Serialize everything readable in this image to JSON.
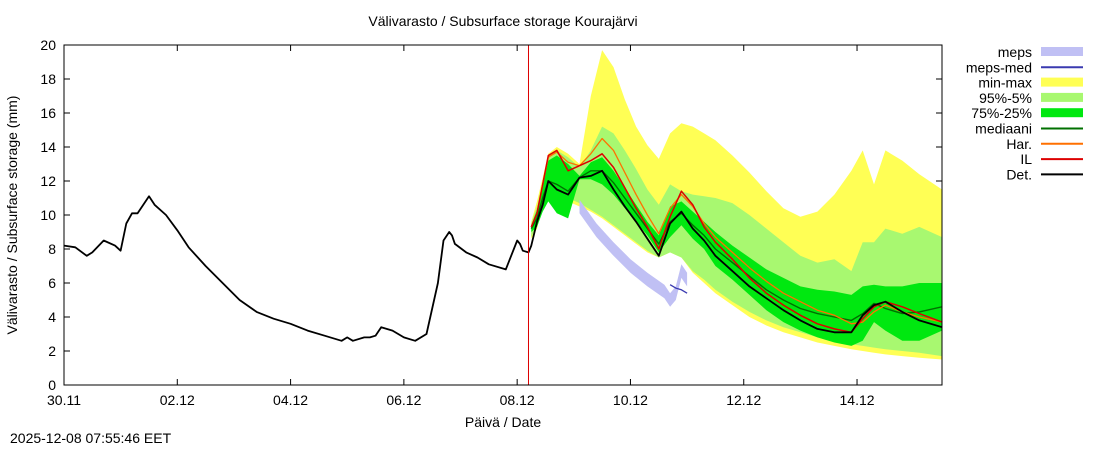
{
  "chart_data": {
    "type": "line",
    "title": "Välivarasto / Subsurface storage  Kourajärvi",
    "xlabel": "Päivä / Date",
    "ylabel": "Välivarasto / Subsurface storage (mm)",
    "xlim": [
      0,
      15.5
    ],
    "ylim": [
      0,
      20
    ],
    "x_ticks": [
      {
        "x": 0,
        "label": "30.11"
      },
      {
        "x": 2,
        "label": "02.12"
      },
      {
        "x": 4,
        "label": "04.12"
      },
      {
        "x": 6,
        "label": "06.12"
      },
      {
        "x": 8,
        "label": "08.12"
      },
      {
        "x": 10,
        "label": "10.12"
      },
      {
        "x": 12,
        "label": "12.12"
      },
      {
        "x": 14,
        "label": "14.12"
      }
    ],
    "y_ticks": [
      0,
      2,
      4,
      6,
      8,
      10,
      12,
      14,
      16,
      18,
      20
    ],
    "forecast_start": 8.2,
    "legend": [
      {
        "label": "meps",
        "color": "#c0c0f4",
        "style": "band"
      },
      {
        "label": "meps-med",
        "color": "#3a3ab0",
        "style": "line"
      },
      {
        "label": "min-max",
        "color": "#ffff55",
        "style": "band"
      },
      {
        "label": "95%-5%",
        "color": "#a8f870",
        "style": "band"
      },
      {
        "label": "75%-25%",
        "color": "#00e810",
        "style": "band"
      },
      {
        "label": "mediaani",
        "color": "#007000",
        "style": "line"
      },
      {
        "label": "Har.",
        "color": "#ff7000",
        "style": "line"
      },
      {
        "label": "IL",
        "color": "#dd0000",
        "style": "line"
      },
      {
        "label": "Det.",
        "color": "#000000",
        "style": "line"
      }
    ],
    "series": [
      {
        "name": "min-max",
        "x": [
          8.25,
          8.35,
          8.45,
          8.55,
          8.7,
          8.9,
          9.1,
          9.3,
          9.5,
          9.7,
          9.9,
          10.1,
          10.3,
          10.5,
          10.7,
          10.9,
          11.1,
          11.3,
          11.5,
          11.8,
          12.1,
          12.4,
          12.7,
          13,
          13.3,
          13.6,
          13.9,
          14.1,
          14.3,
          14.5,
          14.8,
          15.1,
          15.5
        ],
        "upper": [
          9.6,
          10.8,
          12.2,
          13.6,
          14.0,
          13.6,
          13.0,
          17.0,
          19.7,
          18.7,
          16.8,
          15.2,
          14.1,
          13.3,
          14.8,
          15.4,
          15.2,
          14.8,
          14.4,
          13.5,
          12.5,
          11.4,
          10.4,
          9.9,
          10.2,
          11.2,
          12.6,
          13.8,
          11.8,
          13.8,
          13.2,
          12.4,
          11.5
        ],
        "lower": [
          8.6,
          9.2,
          10.6,
          11.2,
          11.0,
          10.8,
          10.5,
          10.2,
          9.8,
          9.3,
          8.8,
          8.3,
          7.8,
          7.5,
          7.8,
          7.5,
          6.6,
          6.0,
          5.4,
          4.7,
          4.0,
          3.5,
          3.1,
          2.8,
          2.5,
          2.3,
          2.1,
          2.0,
          1.9,
          1.8,
          1.7,
          1.6,
          1.5
        ]
      },
      {
        "name": "95%-5%",
        "x": [
          8.25,
          8.35,
          8.45,
          8.55,
          8.7,
          8.9,
          9.1,
          9.3,
          9.5,
          9.7,
          9.9,
          10.1,
          10.3,
          10.5,
          10.7,
          10.9,
          11.1,
          11.3,
          11.5,
          11.8,
          12.1,
          12.4,
          12.7,
          13,
          13.3,
          13.6,
          13.9,
          14.1,
          14.3,
          14.5,
          14.8,
          15.1,
          15.5
        ],
        "upper": [
          9.5,
          10.5,
          12.0,
          13.4,
          13.8,
          13.4,
          12.8,
          13.8,
          15.2,
          14.8,
          13.8,
          12.7,
          11.5,
          10.6,
          11.8,
          11.4,
          11.2,
          11.1,
          11.0,
          10.7,
          10.0,
          9.2,
          8.4,
          7.6,
          7.2,
          7.4,
          6.7,
          8.4,
          8.4,
          9.2,
          8.9,
          9.3,
          8.7
        ],
        "lower": [
          8.7,
          9.4,
          10.8,
          11.4,
          11.2,
          11.0,
          10.7,
          10.3,
          9.9,
          9.4,
          8.9,
          8.4,
          7.9,
          7.5,
          7.8,
          7.5,
          6.7,
          6.2,
          5.6,
          4.9,
          4.3,
          3.8,
          3.4,
          3.1,
          2.8,
          2.6,
          2.4,
          2.3,
          2.2,
          2.1,
          2.0,
          1.9,
          1.7
        ]
      },
      {
        "name": "75%-25%",
        "x": [
          8.25,
          8.35,
          8.45,
          8.55,
          8.7,
          8.9,
          9.1,
          9.3,
          9.5,
          9.7,
          9.9,
          10.1,
          10.3,
          10.5,
          10.7,
          10.9,
          11.1,
          11.3,
          11.5,
          11.8,
          12.1,
          12.4,
          12.7,
          13,
          13.3,
          13.6,
          13.9,
          14.1,
          14.3,
          14.5,
          14.8,
          15.1,
          15.5
        ],
        "upper": [
          9.4,
          10.3,
          11.8,
          13.2,
          13.5,
          13.0,
          12.3,
          13.1,
          13.4,
          12.6,
          11.6,
          10.6,
          9.6,
          8.8,
          10.5,
          10.8,
          10.2,
          9.6,
          9.0,
          8.2,
          7.5,
          6.8,
          6.3,
          5.8,
          5.6,
          5.5,
          5.3,
          5.8,
          5.9,
          5.8,
          5.8,
          6.0,
          6.0
        ]
      }
    ],
    "lines": [
      {
        "name": "meps",
        "x": [
          9.1,
          9.4,
          9.7,
          10.0,
          10.3,
          10.6,
          10.7,
          10.8,
          10.9,
          11.0
        ],
        "y": [
          10.6,
          9.2,
          8.1,
          7.1,
          6.3,
          5.6,
          5.1,
          5.5,
          6.8,
          6.3
        ]
      },
      {
        "name": "meps-med",
        "x": [
          10.7,
          10.8,
          10.9,
          11.0
        ],
        "y": [
          5.9,
          5.7,
          5.6,
          5.4
        ]
      },
      {
        "name": "mediaani",
        "x": [
          8.25,
          8.35,
          8.45,
          8.55,
          8.7,
          8.9,
          9.1,
          9.3,
          9.5,
          9.7,
          9.9,
          10.1,
          10.3,
          10.5,
          10.7,
          10.9,
          11.1,
          11.3,
          11.5,
          11.8,
          12.1,
          12.4,
          12.7,
          13,
          13.3,
          13.6,
          13.9,
          14.1,
          14.3,
          14.5,
          14.8,
          15.1,
          15.5
        ],
        "y": [
          9.2,
          9.8,
          11.0,
          12.0,
          11.8,
          11.4,
          12.2,
          12.6,
          12.6,
          11.9,
          11.0,
          10.1,
          9.2,
          8.3,
          9.6,
          10.1,
          9.4,
          8.8,
          8.0,
          7.2,
          6.4,
          5.6,
          5.0,
          4.5,
          4.2,
          4.0,
          3.8,
          4.2,
          4.8,
          4.5,
          4.2,
          4.3,
          4.6
        ]
      },
      {
        "name": "Har.",
        "x": [
          8.25,
          8.35,
          8.45,
          8.55,
          8.7,
          8.9,
          9.1,
          9.3,
          9.5,
          9.7,
          9.9,
          10.1,
          10.3,
          10.5,
          10.7,
          10.9,
          11.1,
          11.3,
          11.5,
          11.8,
          12.1,
          12.4,
          12.7,
          13,
          13.3,
          13.6,
          13.9,
          14.1,
          14.3,
          14.5,
          14.8,
          15.1,
          15.5
        ],
        "y": [
          9.3,
          10.1,
          11.8,
          13.4,
          13.7,
          13.1,
          12.9,
          13.6,
          14.5,
          13.8,
          12.5,
          11.2,
          10.0,
          8.9,
          10.4,
          11.2,
          10.5,
          9.5,
          8.7,
          7.8,
          6.9,
          6.1,
          5.4,
          4.9,
          4.4,
          4.1,
          3.6,
          3.7,
          4.3,
          4.7,
          4.3,
          4.0,
          3.7
        ]
      },
      {
        "name": "IL",
        "x": [
          8.25,
          8.35,
          8.45,
          8.55,
          8.7,
          8.9,
          9.1,
          9.3,
          9.5,
          9.7,
          9.9,
          10.1,
          10.3,
          10.5,
          10.7,
          10.9,
          11.1,
          11.3,
          11.5,
          11.8,
          12.1,
          12.4,
          12.7,
          13,
          13.3,
          13.6,
          13.9,
          14.1,
          14.3,
          14.5,
          14.8,
          15.1,
          15.5
        ],
        "y": [
          9.3,
          10.1,
          11.8,
          13.5,
          13.8,
          12.6,
          12.9,
          13.2,
          13.6,
          12.8,
          11.6,
          10.4,
          9.3,
          8.0,
          9.9,
          11.4,
          10.6,
          9.3,
          8.4,
          7.4,
          6.3,
          5.4,
          4.7,
          4.1,
          3.6,
          3.3,
          3.1,
          3.9,
          4.6,
          4.9,
          4.6,
          4.2,
          3.7
        ]
      },
      {
        "name": "Det.",
        "x": [
          0,
          0.2,
          0.4,
          0.5,
          0.7,
          0.9,
          1.0,
          1.1,
          1.2,
          1.3,
          1.5,
          1.6,
          1.8,
          2.0,
          2.2,
          2.5,
          2.8,
          3.1,
          3.4,
          3.7,
          4.0,
          4.3,
          4.6,
          4.9,
          5.0,
          5.1,
          5.3,
          5.4,
          5.5,
          5.6,
          5.8,
          6.0,
          6.2,
          6.4,
          6.6,
          6.7,
          6.8,
          6.85,
          6.9,
          7.1,
          7.3,
          7.5,
          7.8,
          8.0,
          8.05,
          8.1,
          8.2,
          8.25,
          8.35,
          8.45,
          8.55,
          8.7,
          8.9,
          9.1,
          9.3,
          9.5,
          9.7,
          9.9,
          10.1,
          10.3,
          10.5,
          10.7,
          10.9,
          11.1,
          11.3,
          11.5,
          11.8,
          12.1,
          12.4,
          12.7,
          13.0,
          13.3,
          13.6,
          13.9,
          14.1,
          14.3,
          14.5,
          14.8,
          15.1,
          15.5
        ],
        "y": [
          8.2,
          8.1,
          7.6,
          7.8,
          8.5,
          8.2,
          7.9,
          9.5,
          10.1,
          10.1,
          11.1,
          10.6,
          10.0,
          9.1,
          8.1,
          7.0,
          6.0,
          5.0,
          4.3,
          3.9,
          3.6,
          3.2,
          2.9,
          2.6,
          2.8,
          2.6,
          2.8,
          2.8,
          2.9,
          3.4,
          3.2,
          2.8,
          2.6,
          3.0,
          6.0,
          8.5,
          9.0,
          8.8,
          8.3,
          7.8,
          7.5,
          7.1,
          6.8,
          8.5,
          8.3,
          7.9,
          7.8,
          8.2,
          9.6,
          10.6,
          12.0,
          11.5,
          11.2,
          12.2,
          12.3,
          12.6,
          11.5,
          10.5,
          9.6,
          8.6,
          7.6,
          9.5,
          10.2,
          9.2,
          8.5,
          7.6,
          6.7,
          5.8,
          5.1,
          4.4,
          3.8,
          3.3,
          3.1,
          3.1,
          4.1,
          4.7,
          4.9,
          4.3,
          3.8,
          3.4
        ]
      }
    ]
  },
  "timestamp": "2025-12-08 07:55:46 EET"
}
